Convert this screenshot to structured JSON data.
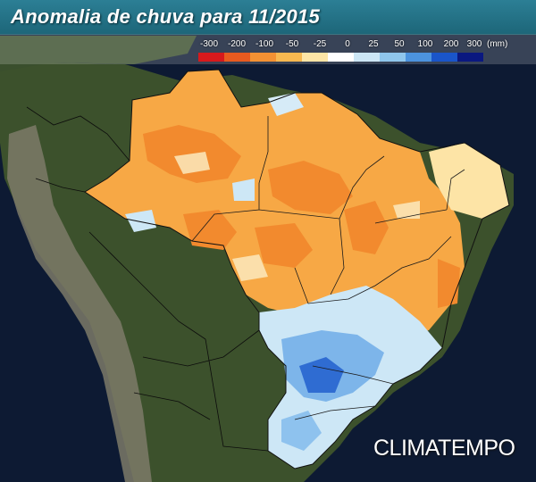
{
  "header": {
    "title": "Anomalia de chuva para 11/2015"
  },
  "legend": {
    "unit": "(mm)",
    "ticks": [
      "-300",
      "-200",
      "-100",
      "-50",
      "-25",
      "0",
      "25",
      "50",
      "100",
      "200",
      "300"
    ],
    "colors": [
      "#d7191c",
      "#e85a1f",
      "#f39133",
      "#f7b850",
      "#fde5a6",
      "#ffffff",
      "#cce6f5",
      "#8fc6ec",
      "#4c93de",
      "#1a55c9",
      "#0a1880"
    ]
  },
  "colors": {
    "ocean": "#0d1a33",
    "land": "#3b4f2b",
    "andes": "#7e7a6a",
    "deficit_strong": "#f28a2e",
    "deficit": "#f7ab46",
    "deficit_light": "#fde4a6",
    "surplus_light": "#cde7f6",
    "surplus": "#7db5ea",
    "surplus_strong": "#2f6cd2"
  },
  "branding": {
    "logo_text": "CLIMATEMPO"
  }
}
